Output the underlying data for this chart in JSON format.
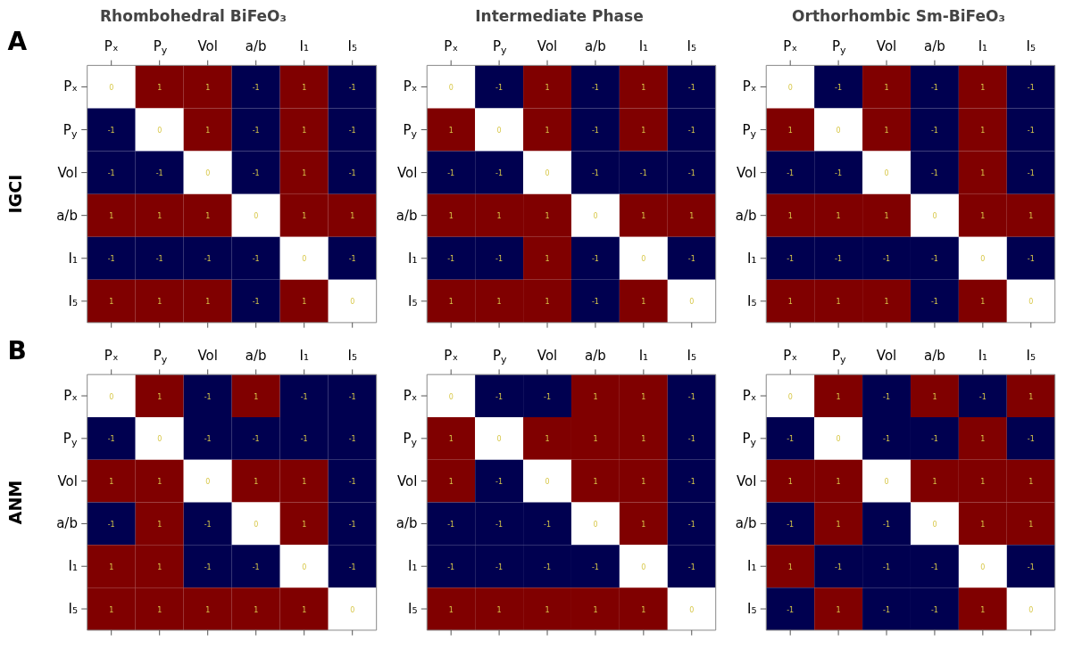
{
  "chart_data": [
    {
      "type": "heatmap",
      "title": "Rhombohedral BiFeO₃",
      "ylabel": "IGCI",
      "annotations": [
        "A"
      ],
      "categories": [
        "Pₓ",
        "P$_{y}$",
        "Vol",
        "a/b",
        "I₁",
        "I₅"
      ],
      "y_categories": [
        "Pₓ",
        "P$_{y}$",
        "Vol",
        "a/b",
        "I₁",
        "I₅"
      ],
      "colors": [
        "#000050",
        "#ffffff",
        "#800000"
      ],
      "data_labels": true,
      "cells": [
        [
          0,
          1,
          1,
          -1,
          1,
          -1
        ],
        [
          -1,
          0,
          1,
          -1,
          1,
          -1
        ],
        [
          -1,
          -1,
          0,
          -1,
          1,
          -1
        ],
        [
          1,
          1,
          1,
          0,
          1,
          1
        ],
        [
          -1,
          -1,
          -1,
          -1,
          0,
          -1
        ],
        [
          1,
          1,
          1,
          -1,
          1,
          0
        ]
      ]
    },
    {
      "type": "heatmap",
      "title": "Intermediate Phase",
      "categories": [
        "Pₓ",
        "P$_{y}$",
        "Vol",
        "a/b",
        "I₁",
        "I₅"
      ],
      "y_categories": [
        "Pₓ",
        "P$_{y}$",
        "Vol",
        "a/b",
        "I₁",
        "I₅"
      ],
      "colors": [
        "#000050",
        "#ffffff",
        "#800000"
      ],
      "data_labels": true,
      "cells": [
        [
          0,
          -1,
          1,
          -1,
          1,
          -1
        ],
        [
          1,
          0,
          1,
          -1,
          1,
          -1
        ],
        [
          -1,
          -1,
          0,
          -1,
          -1,
          -1
        ],
        [
          1,
          1,
          1,
          0,
          1,
          1
        ],
        [
          -1,
          -1,
          1,
          -1,
          0,
          -1
        ],
        [
          1,
          1,
          1,
          -1,
          1,
          0
        ]
      ]
    },
    {
      "type": "heatmap",
      "title": "Orthorhombic Sm-BiFeO₃",
      "categories": [
        "Pₓ",
        "P$_{y}$",
        "Vol",
        "a/b",
        "I₁",
        "I₅"
      ],
      "y_categories": [
        "Pₓ",
        "P$_{y}$",
        "Vol",
        "a/b",
        "I₁",
        "I₅"
      ],
      "colors": [
        "#000050",
        "#ffffff",
        "#800000"
      ],
      "data_labels": true,
      "cells": [
        [
          0,
          -1,
          1,
          -1,
          1,
          -1
        ],
        [
          1,
          0,
          1,
          -1,
          1,
          -1
        ],
        [
          -1,
          -1,
          0,
          -1,
          1,
          -1
        ],
        [
          1,
          1,
          1,
          0,
          1,
          1
        ],
        [
          -1,
          -1,
          -1,
          -1,
          0,
          -1
        ],
        [
          1,
          1,
          1,
          -1,
          1,
          0
        ]
      ]
    },
    {
      "type": "heatmap",
      "ylabel": "ANM",
      "annotations": [
        "B"
      ],
      "categories": [
        "Pₓ",
        "P$_{y}$",
        "Vol",
        "a/b",
        "I₁",
        "I₅"
      ],
      "y_categories": [
        "Pₓ",
        "P$_{y}$",
        "Vol",
        "a/b",
        "I₁",
        "I₅"
      ],
      "colors": [
        "#000050",
        "#ffffff",
        "#800000"
      ],
      "data_labels": true,
      "cells": [
        [
          0,
          1,
          -1,
          1,
          -1,
          -1
        ],
        [
          -1,
          0,
          -1,
          -1,
          -1,
          -1
        ],
        [
          1,
          1,
          0,
          1,
          1,
          -1
        ],
        [
          -1,
          1,
          -1,
          0,
          1,
          -1
        ],
        [
          1,
          1,
          -1,
          -1,
          0,
          -1
        ],
        [
          1,
          1,
          1,
          1,
          1,
          0
        ]
      ]
    },
    {
      "type": "heatmap",
      "categories": [
        "Pₓ",
        "P$_{y}$",
        "Vol",
        "a/b",
        "I₁",
        "I₅"
      ],
      "y_categories": [
        "Pₓ",
        "P$_{y}$",
        "Vol",
        "a/b",
        "I₁",
        "I₅"
      ],
      "colors": [
        "#000050",
        "#ffffff",
        "#800000"
      ],
      "data_labels": true,
      "cells": [
        [
          0,
          -1,
          -1,
          1,
          1,
          -1
        ],
        [
          1,
          0,
          1,
          1,
          1,
          -1
        ],
        [
          1,
          -1,
          0,
          1,
          1,
          -1
        ],
        [
          -1,
          -1,
          -1,
          0,
          1,
          -1
        ],
        [
          -1,
          -1,
          -1,
          -1,
          0,
          -1
        ],
        [
          1,
          1,
          1,
          1,
          1,
          0
        ]
      ]
    },
    {
      "type": "heatmap",
      "categories": [
        "Pₓ",
        "P$_{y}$",
        "Vol",
        "a/b",
        "I₁",
        "I₅"
      ],
      "y_categories": [
        "Pₓ",
        "P$_{y}$",
        "Vol",
        "a/b",
        "I₁",
        "I₅"
      ],
      "colors": [
        "#000050",
        "#ffffff",
        "#800000"
      ],
      "data_labels": true,
      "cells": [
        [
          0,
          1,
          -1,
          1,
          -1,
          1
        ],
        [
          -1,
          0,
          -1,
          -1,
          1,
          -1
        ],
        [
          1,
          1,
          0,
          1,
          1,
          1
        ],
        [
          -1,
          1,
          -1,
          0,
          1,
          1
        ],
        [
          1,
          -1,
          -1,
          -1,
          0,
          -1
        ],
        [
          -1,
          1,
          -1,
          -1,
          1,
          0
        ]
      ]
    }
  ]
}
